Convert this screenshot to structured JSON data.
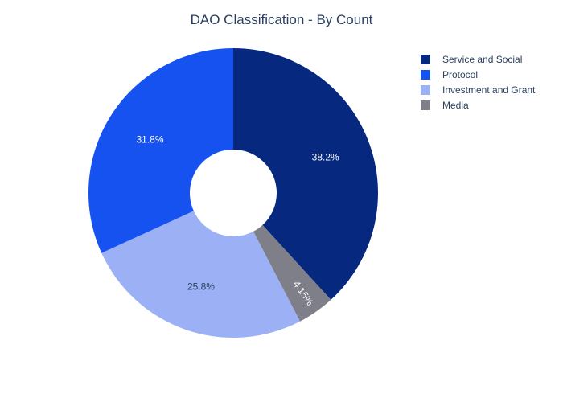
{
  "chart_data": {
    "type": "pie",
    "title": "DAO Classification - By Count",
    "hole": true,
    "legend_position": "top-right",
    "slices": [
      {
        "label": "Service and Social",
        "value": 38.2,
        "text": "38.2%",
        "color": "#06287e",
        "text_color": "#ffffff"
      },
      {
        "label": "Media",
        "value": 4.15,
        "text": "4.15%",
        "color": "#7e7f88",
        "text_color": "#ffffff"
      },
      {
        "label": "Investment and Grant",
        "value": 25.8,
        "text": "25.8%",
        "color": "#9cb1f5",
        "text_color": "#2a3f5f"
      },
      {
        "label": "Protocol",
        "value": 31.8,
        "text": "31.8%",
        "color": "#1652f0",
        "text_color": "#ffffff"
      }
    ],
    "legend": [
      {
        "label": "Service and Social",
        "color": "#06287e"
      },
      {
        "label": "Protocol",
        "color": "#1652f0"
      },
      {
        "label": "Investment and Grant",
        "color": "#9cb1f5"
      },
      {
        "label": "Media",
        "color": "#7e7f88"
      }
    ]
  }
}
